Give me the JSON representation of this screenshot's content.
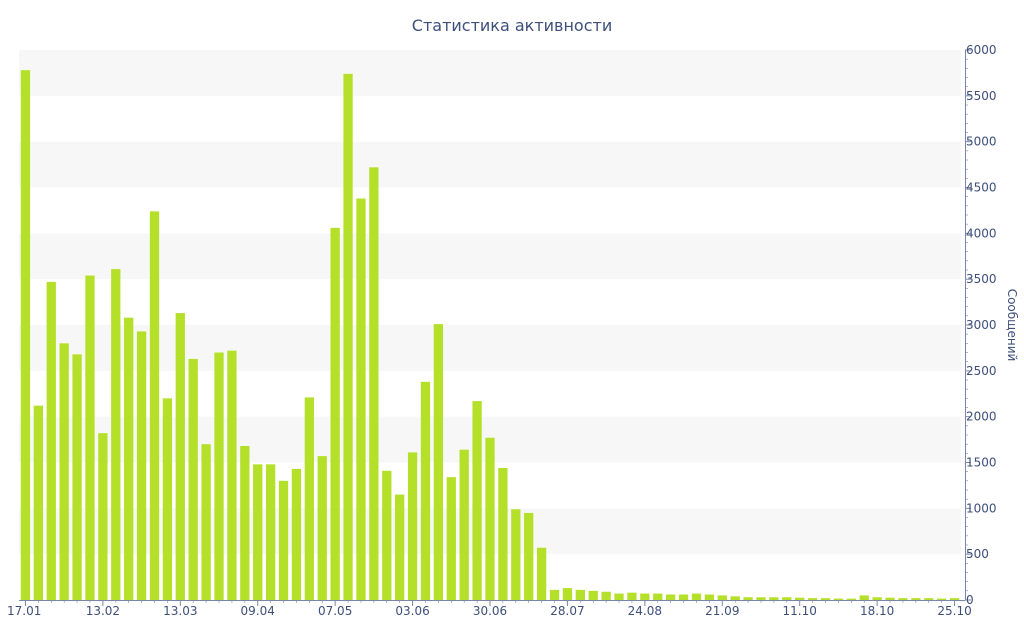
{
  "chart_data": {
    "type": "bar",
    "title": "Статистика активности",
    "ylabel": "Сообщений",
    "xlabel": "",
    "ylim": [
      0,
      6000
    ],
    "y_ticks": [
      0,
      500,
      1000,
      1500,
      2000,
      2500,
      3000,
      3500,
      4000,
      4500,
      5000,
      5500,
      6000
    ],
    "y_axis_side": "right",
    "grid": "alternating horizontal bands",
    "legend": "none",
    "x_tick_labels": [
      {
        "index": 0,
        "label": "17.01"
      },
      {
        "index": 6,
        "label": "13.02"
      },
      {
        "index": 12,
        "label": "13.03"
      },
      {
        "index": 18,
        "label": "09.04"
      },
      {
        "index": 24,
        "label": "07.05"
      },
      {
        "index": 30,
        "label": "03.06"
      },
      {
        "index": 36,
        "label": "30.06"
      },
      {
        "index": 42,
        "label": "28.07"
      },
      {
        "index": 48,
        "label": "24.08"
      },
      {
        "index": 54,
        "label": "21.09"
      },
      {
        "index": 60,
        "label": "11.10"
      },
      {
        "index": 66,
        "label": "18.10"
      },
      {
        "index": 72,
        "label": "25.10"
      }
    ],
    "values": [
      5780,
      2120,
      3470,
      2800,
      2680,
      3540,
      1820,
      3610,
      3080,
      2930,
      4240,
      2200,
      3130,
      2630,
      1700,
      2700,
      2720,
      1680,
      1480,
      1480,
      1300,
      1430,
      2210,
      1570,
      4060,
      5740,
      4380,
      4720,
      1410,
      1150,
      1610,
      2380,
      3010,
      1340,
      1640,
      2170,
      1770,
      1440,
      990,
      950,
      570,
      110,
      130,
      110,
      100,
      90,
      70,
      80,
      70,
      70,
      60,
      60,
      70,
      60,
      50,
      40,
      30,
      30,
      30,
      30,
      25,
      20,
      20,
      15,
      15,
      50,
      30,
      25,
      20,
      20,
      20,
      15,
      20
    ],
    "colors": {
      "bar": "#b5e02a",
      "band": "#f7f7f7",
      "text": "#3e4f7a",
      "axis": "#7a86a8"
    }
  }
}
